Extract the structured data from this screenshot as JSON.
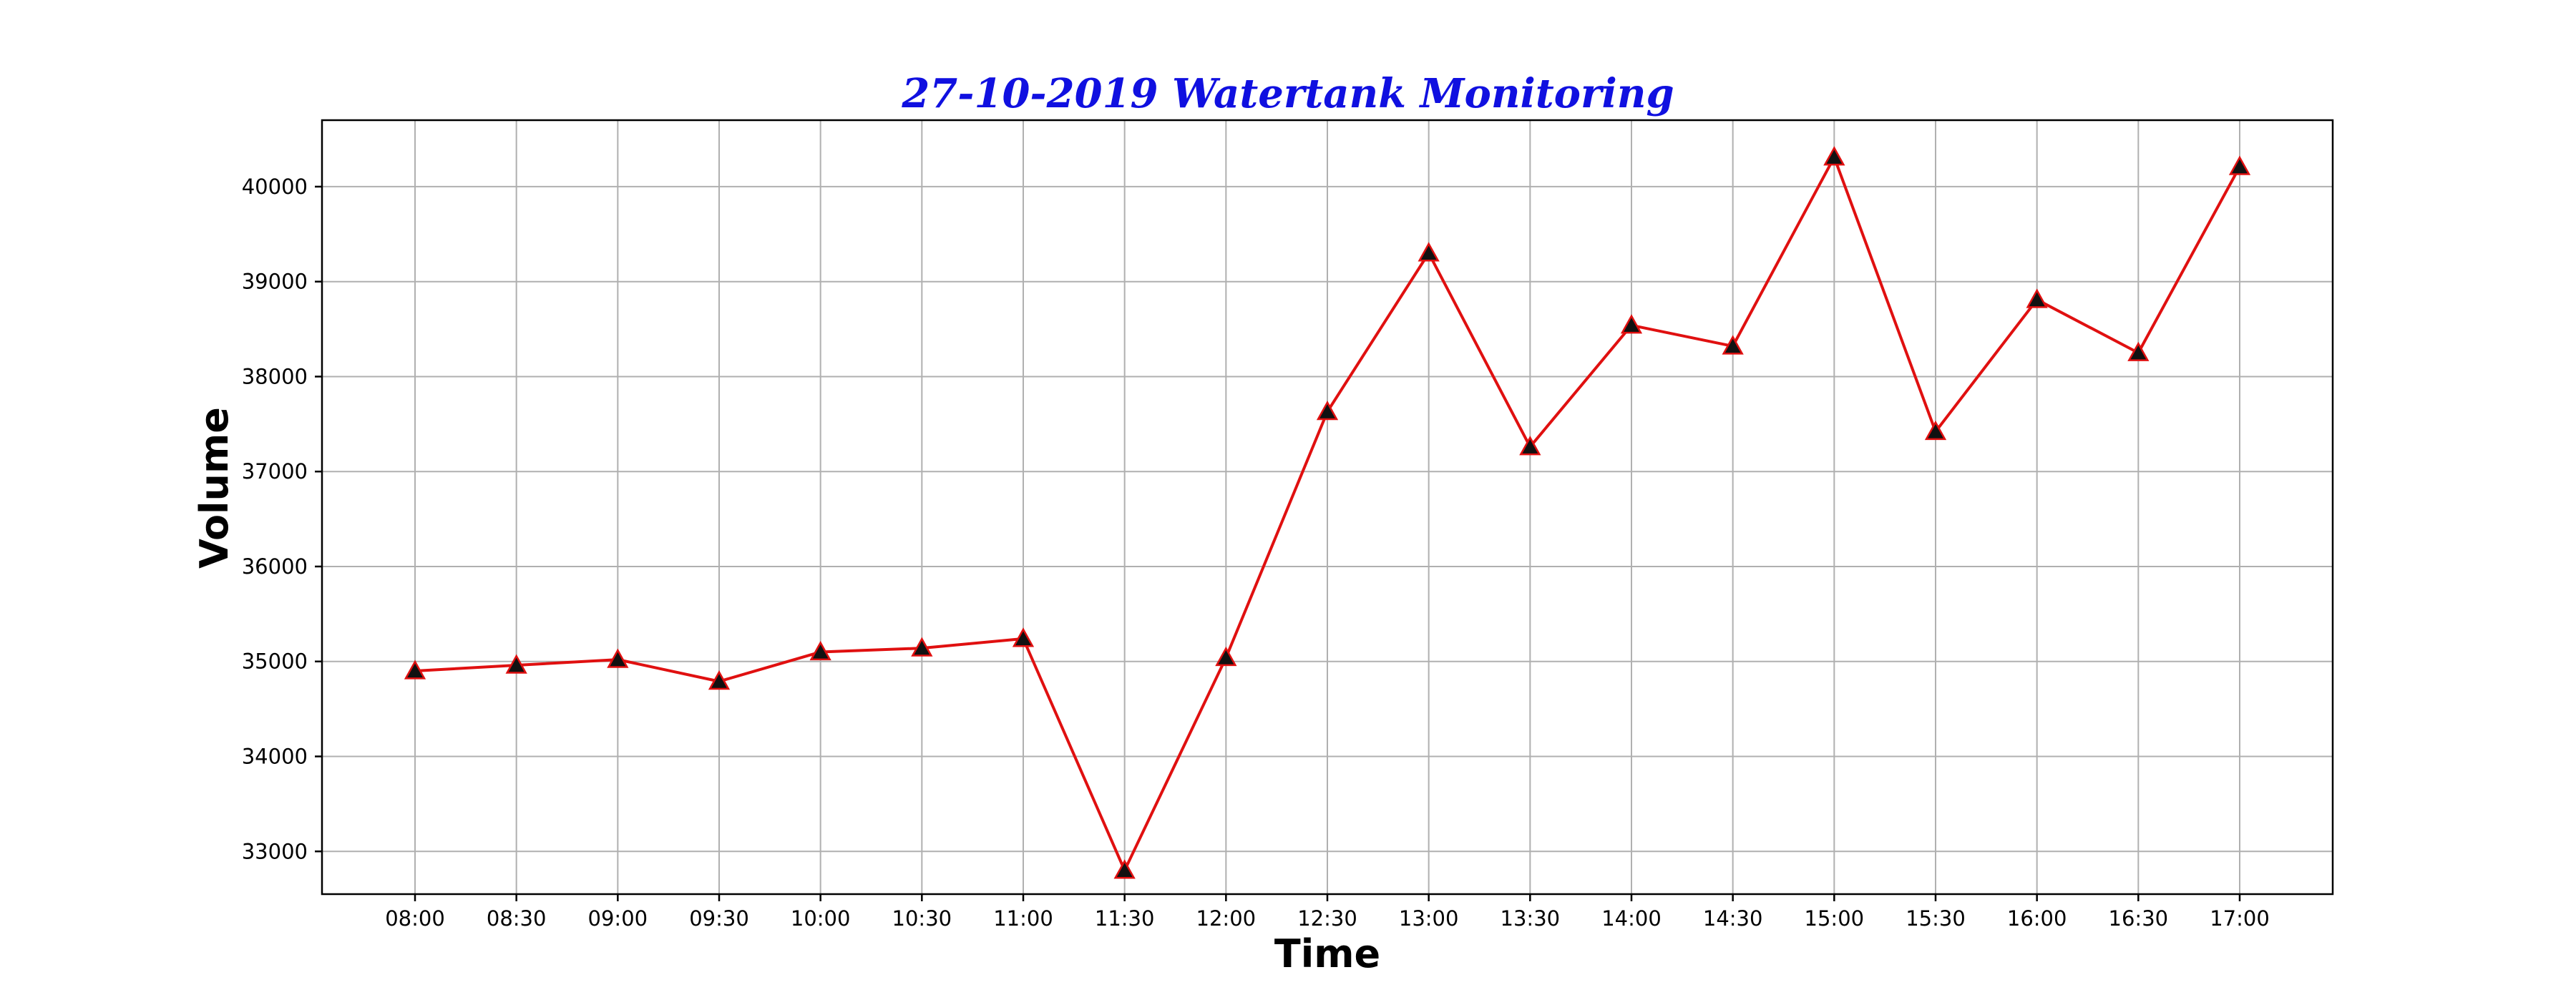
{
  "chart_data": {
    "type": "line",
    "title": "27-10-2019 Watertank Monitoring",
    "xlabel": "Time",
    "ylabel": "Volume",
    "categories": [
      "08:00",
      "08:30",
      "09:00",
      "09:30",
      "10:00",
      "10:30",
      "11:00",
      "11:30",
      "12:00",
      "12:30",
      "13:00",
      "13:30",
      "14:00",
      "14:30",
      "15:00",
      "15:30",
      "16:00",
      "16:30",
      "17:00"
    ],
    "series": [
      {
        "values": [
          34900,
          34960,
          35020,
          34790,
          35100,
          35140,
          35240,
          32800,
          35040,
          37630,
          39300,
          37260,
          38540,
          38320,
          40310,
          37420,
          38810,
          38250,
          40210
        ]
      }
    ],
    "y_ticks": [
      33000,
      34000,
      35000,
      36000,
      37000,
      38000,
      39000,
      40000
    ],
    "ylim": [
      32550,
      40700
    ],
    "grid": true,
    "marker": "triangle",
    "colors": {
      "title": "#1010e0",
      "line": "#e01010",
      "marker_fill": "#111111",
      "marker_edge": "#e01010",
      "grid": "#b0b0b0"
    }
  }
}
